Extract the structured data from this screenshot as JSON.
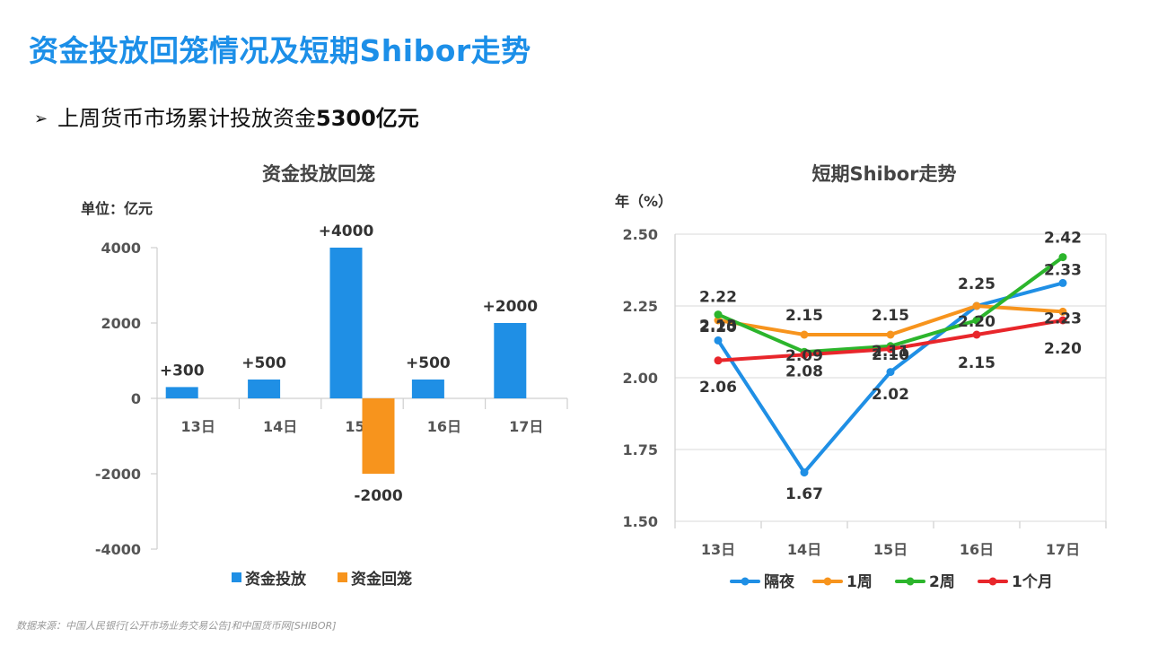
{
  "slide": {
    "title": "资金投放回笼情况及短期Shibor走势",
    "bullet_arrow": "➢",
    "bullet_text": "上周货币市场累计投放资金",
    "bullet_bold": "5300亿元",
    "source": "数据来源：中国人民银行[公开市场业务交易公告]和中国货币网[SHIBOR]"
  },
  "chart_data": [
    {
      "type": "bar",
      "title": "资金投放回笼",
      "unit_label": "单位：亿元",
      "categories": [
        "13日",
        "14日",
        "15日",
        "16日",
        "17日"
      ],
      "ylim": [
        -4000,
        4000
      ],
      "yticks": [
        "4000",
        "2000",
        "0",
        "-2000",
        "-4000"
      ],
      "series": [
        {
          "name": "资金投放",
          "color": "#1f8fe5",
          "values": [
            300,
            500,
            4000,
            500,
            2000
          ],
          "labels": [
            "+300",
            "+500",
            "+4000",
            "+500",
            "+2000"
          ]
        },
        {
          "name": "资金回笼",
          "color": "#f7941d",
          "values": [
            null,
            null,
            -2000,
            null,
            null
          ],
          "labels": [
            "",
            "",
            "-2000",
            "",
            ""
          ]
        }
      ],
      "grid": false,
      "legend": "bottom"
    },
    {
      "type": "line",
      "title": "短期Shibor走势",
      "ylabel": "年（%）",
      "categories": [
        "13日",
        "14日",
        "15日",
        "16日",
        "17日"
      ],
      "ylim": [
        1.5,
        2.5
      ],
      "yticks": [
        "2.50",
        "2.25",
        "2.00",
        "1.75",
        "1.50"
      ],
      "series": [
        {
          "name": "隔夜",
          "color": "#1f8fe5",
          "values": [
            2.13,
            1.67,
            2.02,
            2.25,
            2.33
          ],
          "labels": [
            "2.13",
            "1.67",
            "2.02",
            "2.25",
            "2.33"
          ]
        },
        {
          "name": "1周",
          "color": "#f7941d",
          "values": [
            2.2,
            2.15,
            2.15,
            2.25,
            2.23
          ],
          "labels": [
            "2.20",
            "2.15",
            "2.15",
            "",
            "2.23"
          ]
        },
        {
          "name": "2周",
          "color": "#2cb52c",
          "values": [
            2.22,
            2.09,
            2.11,
            2.2,
            2.42
          ],
          "labels": [
            "2.22",
            "2.09",
            "2.11",
            "2.20",
            "2.42"
          ]
        },
        {
          "name": "1个月",
          "color": "#e8262b",
          "values": [
            2.06,
            2.08,
            2.1,
            2.15,
            2.2
          ],
          "labels": [
            "2.06",
            "2.08",
            "2.10",
            "2.15",
            "2.20"
          ]
        }
      ],
      "grid": true,
      "legend": "bottom"
    }
  ]
}
